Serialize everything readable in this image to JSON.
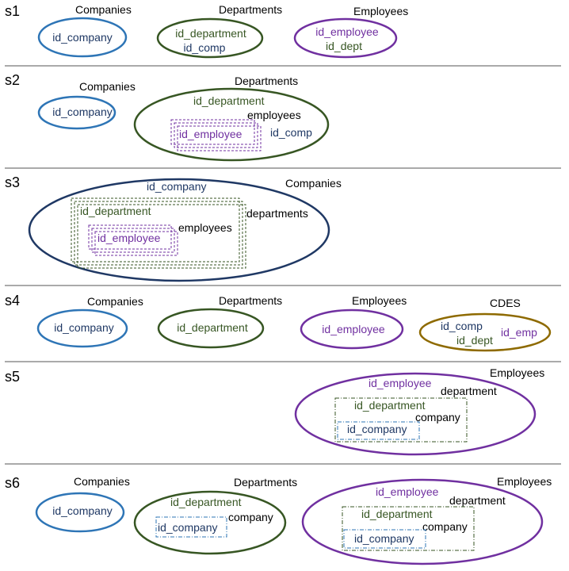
{
  "colors": {
    "company": "#2E75B6",
    "company_text": "#1F3864",
    "department": "#375623",
    "department_text": "#375623",
    "employee": "#7030A0",
    "employee_text": "#7030A0",
    "cdes": "#8E6A00",
    "divider": "#555555"
  },
  "sections": {
    "s1": {
      "label": "s1",
      "companies_title": "Companies",
      "departments_title": "Departments",
      "employees_title": "Employees",
      "companies_attrs": [
        "id_company"
      ],
      "departments_attrs": [
        "id_department",
        "id_comp"
      ],
      "employees_attrs": [
        "id_employee",
        "id_dept"
      ]
    },
    "s2": {
      "label": "s2",
      "companies_title": "Companies",
      "departments_title": "Departments",
      "companies_attrs": [
        "id_company"
      ],
      "departments_id": "id_department",
      "employees_embedded": "employees",
      "employee_id": "id_employee",
      "departments_fk": "id_comp"
    },
    "s3": {
      "label": "s3",
      "companies_id": "id_company",
      "companies_title": "Companies",
      "department_id": "id_department",
      "departments_embedded": "departments",
      "employee_id": "id_employee",
      "employees_embedded": "employees"
    },
    "s4": {
      "label": "s4",
      "companies_title": "Companies",
      "departments_title": "Departments",
      "employees_title": "Employees",
      "cdes_title": "CDES",
      "companies_attrs": [
        "id_company"
      ],
      "departments_attrs": [
        "id_department"
      ],
      "employees_attrs": [
        "id_employee"
      ],
      "cdes_attrs": [
        "id_comp",
        "id_dept",
        "id_emp"
      ]
    },
    "s5": {
      "label": "s5",
      "employees_title": "Employees",
      "employee_id": "id_employee",
      "department_embedded": "department",
      "department_id": "id_department",
      "company_embedded": "company",
      "company_id": "id_company"
    },
    "s6": {
      "label": "s6",
      "companies_title": "Companies",
      "departments_title": "Departments",
      "employees_title": "Employees",
      "companies_attrs": [
        "id_company"
      ],
      "departments_id": "id_department",
      "departments_company_embedded": "company",
      "departments_company_id": "id_company",
      "employee_id": "id_employee",
      "department_embedded": "department",
      "department_id": "id_department",
      "company_embedded": "company",
      "company_id": "id_company"
    }
  }
}
